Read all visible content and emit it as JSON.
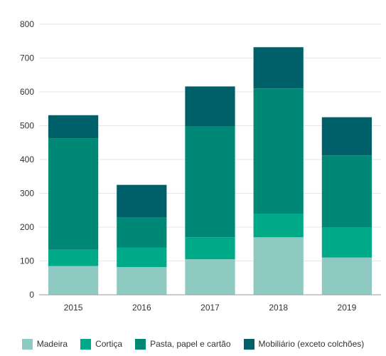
{
  "chart_data": {
    "type": "bar",
    "stacked": true,
    "categories": [
      "2015",
      "2016",
      "2017",
      "2018",
      "2019"
    ],
    "series": [
      {
        "name": "Madeira",
        "color": "#8ecac1",
        "values": [
          85,
          82,
          105,
          170,
          110
        ]
      },
      {
        "name": "Cortiça",
        "color": "#00aa88",
        "values": [
          48,
          58,
          65,
          70,
          90
        ]
      },
      {
        "name": "Pasta, papel e cartão",
        "color": "#008876",
        "values": [
          330,
          88,
          328,
          370,
          212
        ]
      },
      {
        "name": "Mobiliário (exceto colchões)",
        "color": "#00606a",
        "values": [
          68,
          97,
          118,
          122,
          113
        ]
      }
    ],
    "y_ticks": [
      "0",
      "100",
      "200",
      "300",
      "400",
      "500",
      "600",
      "700",
      "800"
    ],
    "ylim": [
      0,
      800
    ],
    "grid": true,
    "legend_position": "bottom"
  }
}
